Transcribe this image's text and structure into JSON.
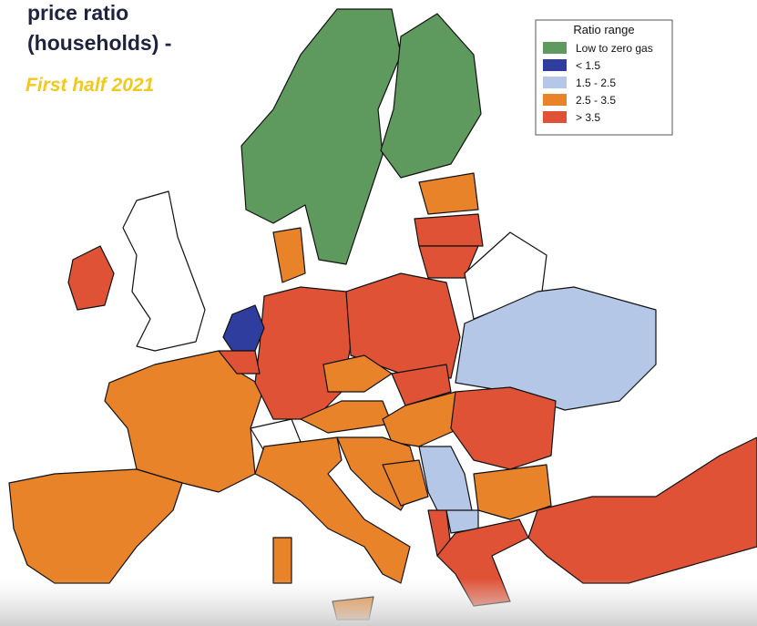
{
  "header": {
    "title_lines": [
      "price ratio",
      "(households) -"
    ],
    "subtitle": "First half 2021"
  },
  "legend": {
    "title": "Ratio range",
    "items": [
      {
        "label": "Low to zero gas",
        "color": "#5e9a5e"
      },
      {
        "label": "< 1.5",
        "color": "#2e3d9e"
      },
      {
        "label": "1.5 - 2.5",
        "color": "#b4c7e7"
      },
      {
        "label": "2.5 - 3.5",
        "color": "#e8832a"
      },
      {
        "label": "> 3.5",
        "color": "#e05236"
      }
    ]
  }
}
